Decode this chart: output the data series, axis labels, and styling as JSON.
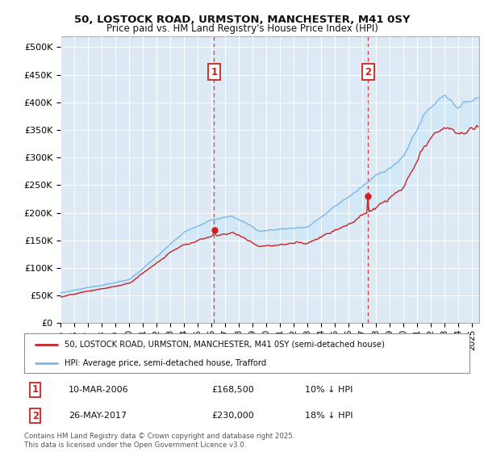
{
  "title_line1": "50, LOSTOCK ROAD, URMSTON, MANCHESTER, M41 0SY",
  "title_line2": "Price paid vs. HM Land Registry's House Price Index (HPI)",
  "ylabel_ticks": [
    "£0",
    "£50K",
    "£100K",
    "£150K",
    "£200K",
    "£250K",
    "£300K",
    "£350K",
    "£400K",
    "£450K",
    "£500K"
  ],
  "ytick_values": [
    0,
    50000,
    100000,
    150000,
    200000,
    250000,
    300000,
    350000,
    400000,
    450000,
    500000
  ],
  "ylim": [
    0,
    520000
  ],
  "xlim_start": 1995.0,
  "xlim_end": 2025.5,
  "hpi_color": "#7ab8e8",
  "price_color": "#cc2222",
  "fill_color": "#d0e8f8",
  "marker1_x": 2006.19,
  "marker1_y": 168500,
  "marker2_x": 2017.4,
  "marker2_y": 230000,
  "marker1_label": "10-MAR-2006",
  "marker1_price": "£168,500",
  "marker1_note": "10% ↓ HPI",
  "marker2_label": "26-MAY-2017",
  "marker2_price": "£230,000",
  "marker2_note": "18% ↓ HPI",
  "legend_line1": "50, LOSTOCK ROAD, URMSTON, MANCHESTER, M41 0SY (semi-detached house)",
  "legend_line2": "HPI: Average price, semi-detached house, Trafford",
  "footnote": "Contains HM Land Registry data © Crown copyright and database right 2025.\nThis data is licensed under the Open Government Licence v3.0.",
  "bg_color": "#ddeaf5",
  "xtick_years": [
    1995,
    1996,
    1997,
    1998,
    1999,
    2000,
    2001,
    2002,
    2003,
    2004,
    2005,
    2006,
    2007,
    2008,
    2009,
    2010,
    2011,
    2012,
    2013,
    2014,
    2015,
    2016,
    2017,
    2018,
    2019,
    2020,
    2021,
    2022,
    2023,
    2024,
    2025
  ]
}
